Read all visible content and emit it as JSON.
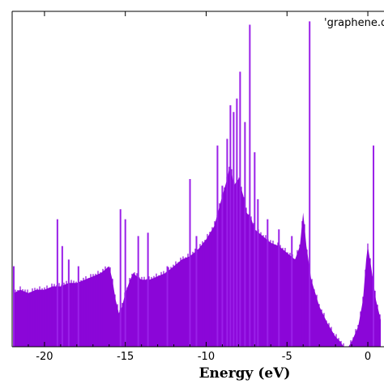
{
  "chart_data": {
    "type": "area",
    "title": "",
    "xlabel": "Energy (eV)",
    "ylabel": "",
    "xlim": [
      -22,
      1
    ],
    "ylim": [
      0,
      1
    ],
    "grid": false,
    "legend": {
      "placement": "top-right",
      "entries": [
        "'graphene.d"
      ]
    },
    "xticks": [
      -20,
      -15,
      -10,
      -5,
      0
    ],
    "xtick_labels": [
      "-20",
      "-15",
      "-10",
      "-5",
      "0"
    ],
    "colors": {
      "fill": "#8b06d8",
      "spike": "#9a20e8"
    },
    "series": [
      {
        "name": "'graphene.d",
        "x": [
          -21.9,
          -21.5,
          -21.0,
          -20.5,
          -20.0,
          -19.5,
          -19.0,
          -18.5,
          -18.0,
          -17.5,
          -17.0,
          -16.5,
          -16.0,
          -15.8,
          -15.6,
          -15.4,
          -15.2,
          -15.0,
          -14.7,
          -14.5,
          -14.3,
          -14.0,
          -13.5,
          -13.0,
          -12.5,
          -12.0,
          -11.5,
          -11.0,
          -10.5,
          -10.0,
          -9.5,
          -9.0,
          -8.7,
          -8.5,
          -8.3,
          -8.0,
          -7.7,
          -7.5,
          -7.2,
          -7.0,
          -6.5,
          -6.0,
          -5.5,
          -5.0,
          -4.5,
          -4.2,
          -4.0,
          -3.8,
          -3.5,
          -3.0,
          -2.5,
          -2.0,
          -1.7,
          -1.5,
          -1.2,
          -1.0,
          -0.6,
          -0.3,
          -0.1,
          0.0,
          0.2,
          0.5,
          0.8
        ],
        "y": [
          0.16,
          0.17,
          0.16,
          0.17,
          0.17,
          0.18,
          0.18,
          0.19,
          0.19,
          0.2,
          0.21,
          0.22,
          0.24,
          0.2,
          0.14,
          0.1,
          0.12,
          0.16,
          0.2,
          0.22,
          0.21,
          0.2,
          0.2,
          0.21,
          0.22,
          0.24,
          0.26,
          0.27,
          0.29,
          0.32,
          0.36,
          0.45,
          0.5,
          0.55,
          0.48,
          0.5,
          0.45,
          0.4,
          0.38,
          0.35,
          0.33,
          0.31,
          0.3,
          0.28,
          0.26,
          0.3,
          0.4,
          0.3,
          0.2,
          0.12,
          0.07,
          0.03,
          0.015,
          0.0,
          0.0,
          0.015,
          0.06,
          0.14,
          0.26,
          0.3,
          0.24,
          0.14,
          0.08
        ]
      }
    ],
    "peaks": [
      {
        "x": -21.9,
        "y": 0.24
      },
      {
        "x": -19.2,
        "y": 0.38
      },
      {
        "x": -18.9,
        "y": 0.3
      },
      {
        "x": -18.5,
        "y": 0.26
      },
      {
        "x": -17.9,
        "y": 0.24
      },
      {
        "x": -15.3,
        "y": 0.41
      },
      {
        "x": -15.0,
        "y": 0.38
      },
      {
        "x": -14.2,
        "y": 0.33
      },
      {
        "x": -13.6,
        "y": 0.34
      },
      {
        "x": -12.4,
        "y": 0.24
      },
      {
        "x": -11.0,
        "y": 0.5
      },
      {
        "x": -10.6,
        "y": 0.33
      },
      {
        "x": -9.3,
        "y": 0.6
      },
      {
        "x": -9.0,
        "y": 0.48
      },
      {
        "x": -8.7,
        "y": 0.62
      },
      {
        "x": -8.5,
        "y": 0.72
      },
      {
        "x": -8.3,
        "y": 0.7
      },
      {
        "x": -8.1,
        "y": 0.74
      },
      {
        "x": -7.9,
        "y": 0.82
      },
      {
        "x": -7.6,
        "y": 0.67
      },
      {
        "x": -7.3,
        "y": 0.96
      },
      {
        "x": -7.0,
        "y": 0.58
      },
      {
        "x": -6.8,
        "y": 0.44
      },
      {
        "x": -6.2,
        "y": 0.38
      },
      {
        "x": -5.5,
        "y": 0.35
      },
      {
        "x": -4.7,
        "y": 0.33
      },
      {
        "x": -3.6,
        "y": 0.97
      },
      {
        "x": 0.35,
        "y": 0.6
      }
    ]
  }
}
